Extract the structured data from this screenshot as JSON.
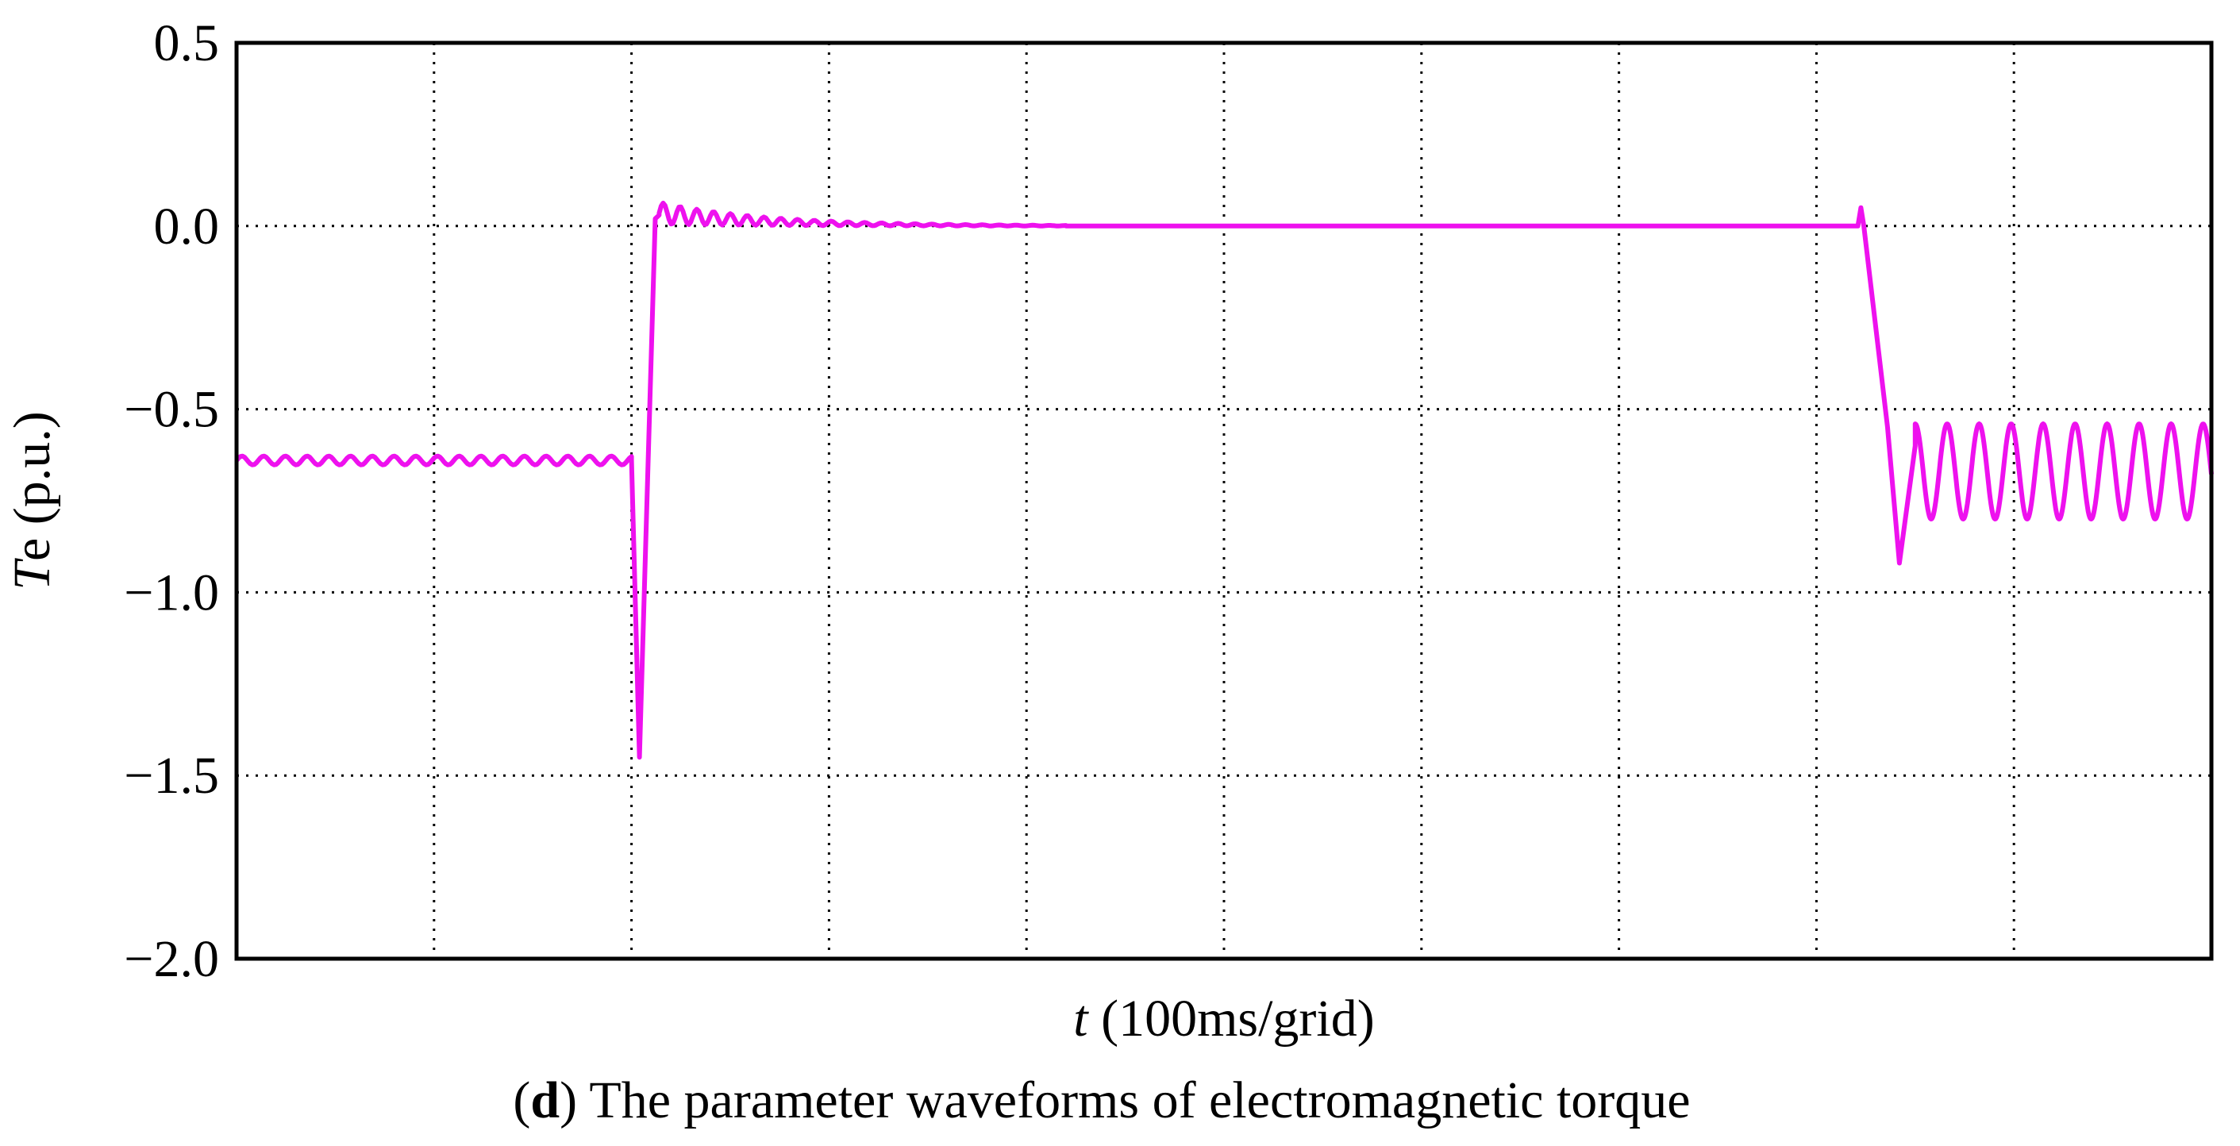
{
  "chart_data": {
    "type": "line",
    "title": "",
    "caption": {
      "prefix_open": "(",
      "letter": "d",
      "prefix_close": ")",
      "text": " The parameter waveforms of electromagnetic torque"
    },
    "xlabel": {
      "symbol": "t",
      "rest": " (100ms/grid)"
    },
    "ylabel": {
      "symbol": "T",
      "rest": "e (p.u.)"
    },
    "ylim": [
      -2.0,
      0.5
    ],
    "yticks": [
      0.5,
      0.0,
      -0.5,
      -1.0,
      -1.5,
      -2.0
    ],
    "ytick_labels": [
      "0.5",
      "0.0",
      "−0.5",
      "−1.0",
      "−1.5",
      "−2.0"
    ],
    "x_grid_divisions": 10,
    "xlim": [
      0,
      10
    ],
    "grid": true,
    "grid_style": "dotted",
    "series": [
      {
        "color": "#ee11ee",
        "segments": [
          {
            "kind": "ripple",
            "x0": 0.0,
            "x1": 2.0,
            "base": -0.64,
            "amp": 0.012,
            "period": 0.11,
            "decay": 0
          },
          {
            "kind": "points",
            "x": [
              2.0,
              2.04,
              2.12,
              2.14
            ],
            "y": [
              -0.64,
              -1.45,
              0.02,
              0.03
            ]
          },
          {
            "kind": "ripple",
            "x0": 2.14,
            "x1": 4.2,
            "base": 0.0,
            "amp": 0.03,
            "period": 0.085,
            "decay": 0.55,
            "offset": 0.035
          },
          {
            "kind": "points",
            "x": [
              4.2,
              8.21
            ],
            "y": [
              0.0,
              0.0
            ]
          },
          {
            "kind": "points",
            "x": [
              8.21,
              8.225,
              8.24,
              8.36,
              8.42,
              8.5
            ],
            "y": [
              0.0,
              0.05,
              0.0,
              -0.55,
              -0.92,
              -0.6
            ]
          },
          {
            "kind": "sine",
            "x0": 8.5,
            "x1": 10.0,
            "center": -0.67,
            "amp": 0.13,
            "period": 0.162,
            "phase": 0.25
          }
        ]
      }
    ]
  }
}
